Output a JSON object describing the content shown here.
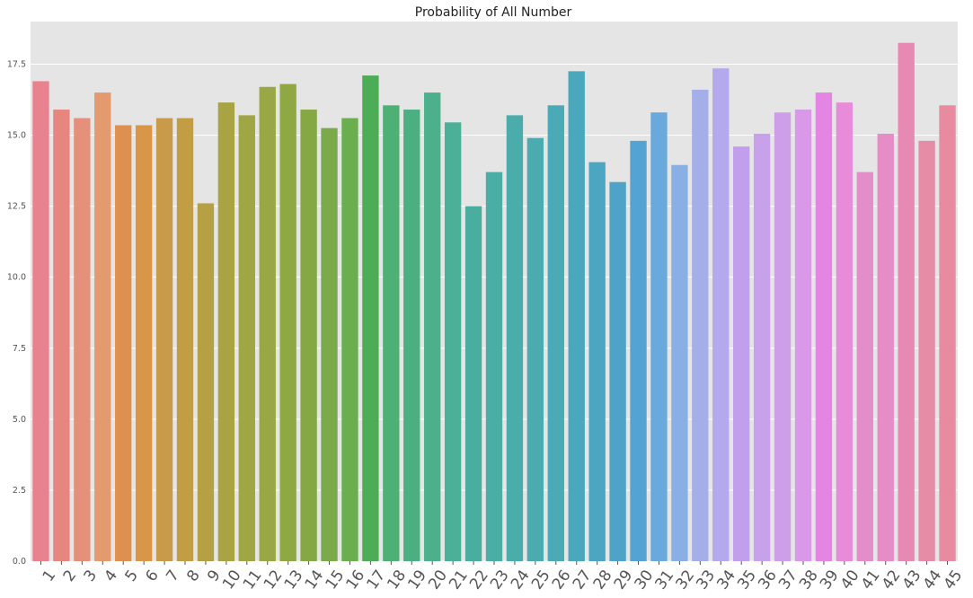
{
  "chart_data": {
    "type": "bar",
    "title": "Probability of All Number",
    "xlabel": "",
    "ylabel": "",
    "ylim": [
      0,
      19
    ],
    "yticks": [
      0.0,
      2.5,
      5.0,
      7.5,
      10.0,
      12.5,
      15.0,
      17.5
    ],
    "ytick_labels": [
      "0.0",
      "2.5",
      "5.0",
      "7.5",
      "10.0",
      "12.5",
      "15.0",
      "17.5"
    ],
    "grid": true,
    "background": "#e5e5e5",
    "categories": [
      "1",
      "2",
      "3",
      "4",
      "5",
      "6",
      "7",
      "8",
      "9",
      "10",
      "11",
      "12",
      "13",
      "14",
      "15",
      "16",
      "17",
      "18",
      "19",
      "20",
      "21",
      "22",
      "23",
      "24",
      "25",
      "26",
      "27",
      "28",
      "29",
      "30",
      "31",
      "32",
      "33",
      "34",
      "35",
      "36",
      "37",
      "38",
      "39",
      "40",
      "41",
      "42",
      "43",
      "44",
      "45"
    ],
    "values": [
      16.9,
      15.9,
      15.6,
      16.5,
      15.35,
      15.35,
      15.6,
      15.6,
      12.6,
      16.15,
      15.7,
      16.7,
      16.8,
      15.9,
      15.25,
      15.6,
      17.1,
      16.05,
      15.9,
      16.5,
      15.45,
      12.5,
      13.7,
      15.7,
      14.9,
      16.05,
      17.25,
      14.05,
      13.35,
      14.8,
      15.8,
      13.95,
      16.6,
      17.35,
      14.6,
      15.05,
      15.8,
      15.9,
      16.5,
      16.15,
      13.7,
      15.05,
      18.25,
      14.8,
      16.05
    ],
    "colors": [
      "#e8828f",
      "#e7857f",
      "#e5907b",
      "#e29a6e",
      "#de9051",
      "#d99648",
      "#c99a49",
      "#c29d44",
      "#b6a044",
      "#a8a343",
      "#9fa643",
      "#99a844",
      "#8fa844",
      "#86a844",
      "#7aaa49",
      "#6aae4e",
      "#4dad56",
      "#4fb076",
      "#4caf82",
      "#4bb08b",
      "#4caf97",
      "#4aae9e",
      "#4aada6",
      "#4aacab",
      "#4aabb1",
      "#4aabb6",
      "#49a8bc",
      "#4ca5c1",
      "#4ea3c6",
      "#54a3d2",
      "#6aa9dc",
      "#8aafe4",
      "#a4aee9",
      "#b3a9ec",
      "#c29fec",
      "#c7a2ea",
      "#cf9ee9",
      "#da98e9",
      "#e485e3",
      "#e88cd9",
      "#e38ec9",
      "#e68cc6",
      "#e68ab3",
      "#e68ca6",
      "#e88ba0"
    ]
  }
}
